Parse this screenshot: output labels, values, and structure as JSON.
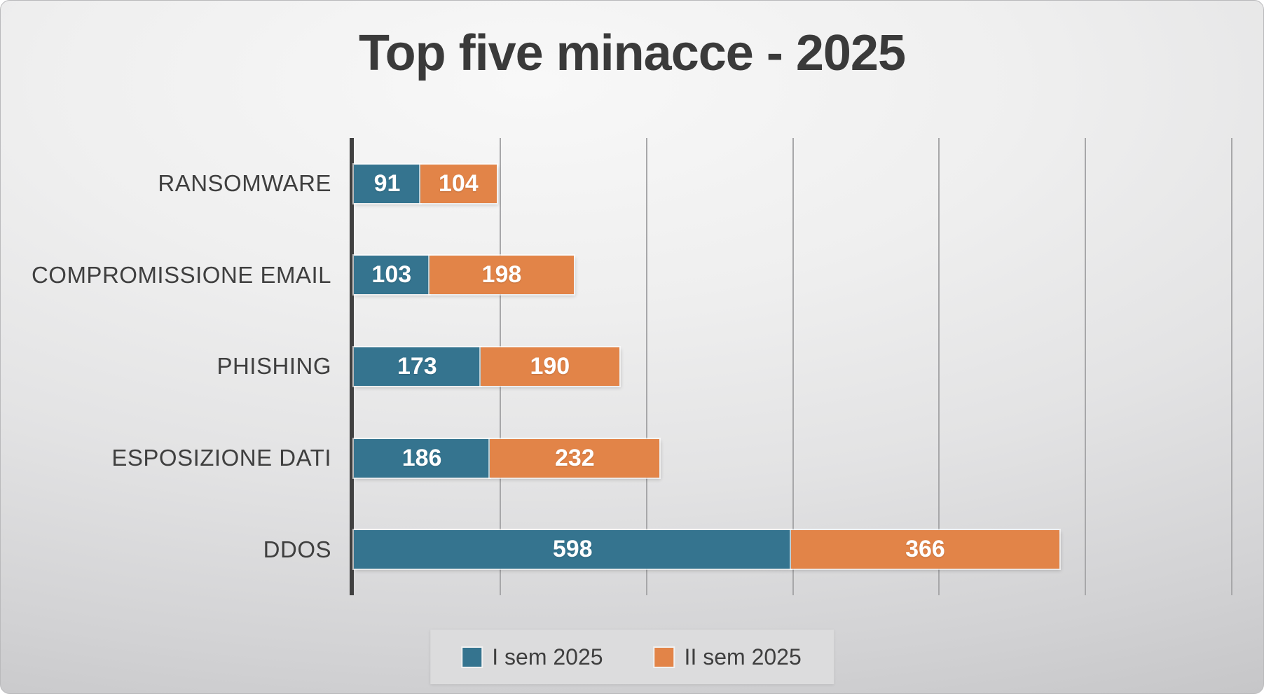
{
  "title": "Top five minacce - 2025",
  "chart_data": {
    "type": "bar",
    "orientation": "horizontal",
    "stacked": true,
    "title": "Top five minacce - 2025",
    "xlabel": "",
    "ylabel": "",
    "categories": [
      "RANSOMWARE",
      "COMPROMISSIONE EMAIL",
      "PHISHING",
      "ESPOSIZIONE DATI",
      "DDOS"
    ],
    "series": [
      {
        "name": "I sem 2025",
        "color": "#35748F",
        "values": [
          91,
          103,
          173,
          186,
          598
        ]
      },
      {
        "name": "II sem 2025",
        "color": "#E28448",
        "values": [
          104,
          198,
          190,
          232,
          366
        ]
      }
    ],
    "data_labels": [
      [
        "91",
        "104"
      ],
      [
        "103",
        "198"
      ],
      [
        "173",
        "190"
      ],
      [
        "186",
        "232"
      ],
      [
        "598",
        "366"
      ]
    ],
    "xlim": [
      0,
      1200
    ],
    "grid_step": 200,
    "grid": true,
    "legend_position": "bottom"
  },
  "colors": {
    "series_1": "#35748F",
    "series_2": "#E28448",
    "axis_line": "#404040",
    "gridline": "#a7a7a9",
    "title_text": "#3a3a3a",
    "label_text": "#3f3f3f",
    "value_text": "#ffffff",
    "legend_background": "#dcdcdd",
    "background_light": "#f8f8f8",
    "background_dark": "#c2c2c4"
  }
}
